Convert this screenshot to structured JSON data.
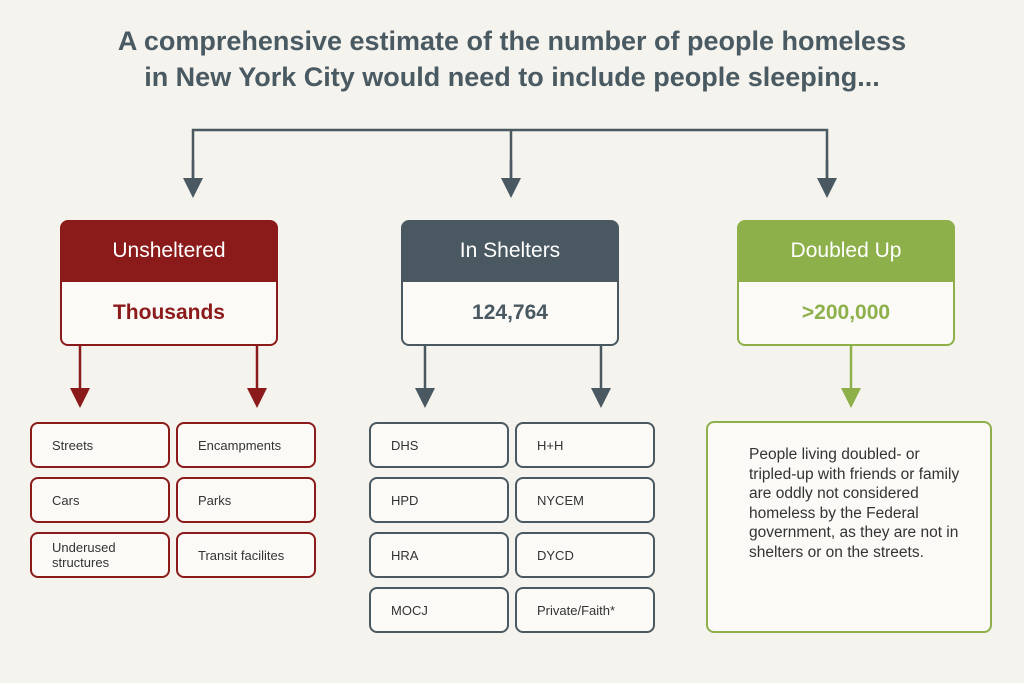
{
  "title_lines": [
    "A comprehensive estimate of the number of people homeless",
    "in New York City would need to include people sleeping..."
  ],
  "columns": [
    {
      "header": "Unsheltered",
      "value": "Thousands",
      "items": [
        "Streets",
        "Encampments",
        "Cars",
        "Parks",
        "Underused structures",
        "Transit facilites"
      ]
    },
    {
      "header": "In Shelters",
      "value": "124,764",
      "items": [
        "DHS",
        "H+H",
        "HPD",
        "NYCEM",
        "HRA",
        "DYCD",
        "MOCJ",
        "Private/Faith*"
      ]
    },
    {
      "header": "Doubled Up",
      "value": ">200,000",
      "note": "People living doubled- or tripled-up with friends or family are oddly not considered homeless by the Federal government, as they are not in shelters or on the streets."
    }
  ]
}
